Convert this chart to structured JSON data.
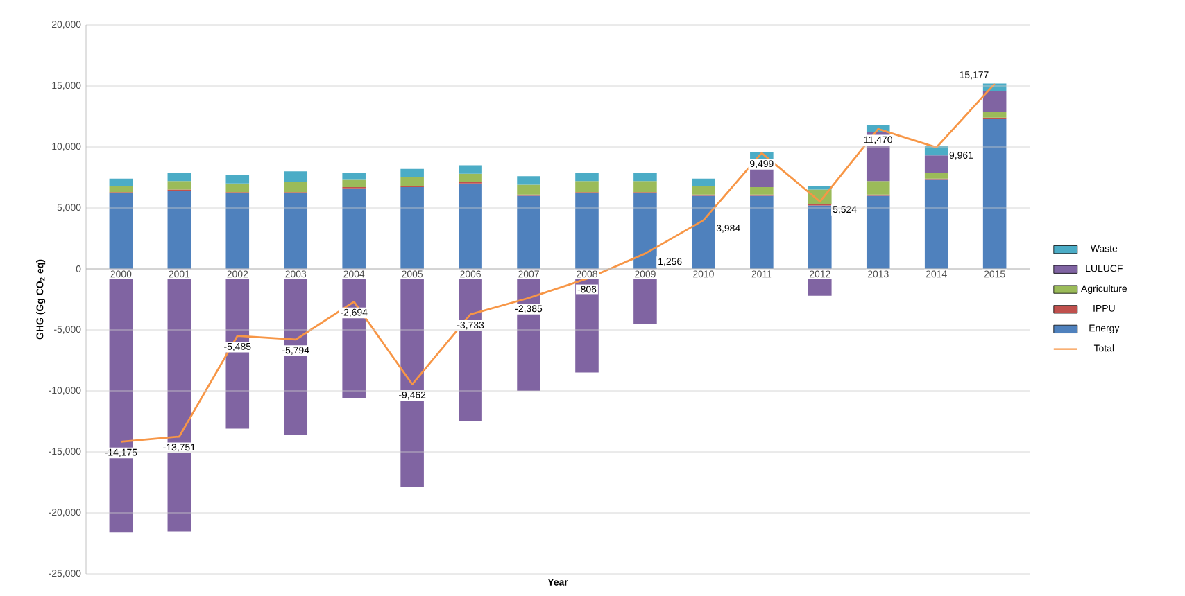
{
  "chart_data": {
    "type": "bar",
    "stacked": true,
    "xlabel": "Year",
    "ylabel": "GHG (Gg CO$_{2}$ eq)",
    "categories": [
      "2000",
      "2001",
      "2002",
      "2003",
      "2004",
      "2005",
      "2006",
      "2007",
      "2008",
      "2009",
      "2010",
      "2011",
      "2012",
      "2013",
      "2014",
      "2015"
    ],
    "series": [
      {
        "name": "Energy",
        "color": "#4f81bd",
        "values": [
          6200,
          6400,
          6200,
          6200,
          6600,
          6700,
          7000,
          6000,
          6200,
          6200,
          6000,
          6000,
          5200,
          6000,
          7300,
          12300
        ]
      },
      {
        "name": "IPPU",
        "color": "#c0504d",
        "values": [
          100,
          100,
          100,
          100,
          100,
          100,
          100,
          100,
          100,
          100,
          100,
          100,
          100,
          100,
          100,
          100
        ]
      },
      {
        "name": "Agriculture",
        "color": "#9bbb59",
        "values": [
          500,
          700,
          700,
          800,
          600,
          700,
          700,
          800,
          900,
          900,
          700,
          600,
          1200,
          1100,
          500,
          500
        ]
      },
      {
        "name": "LULUCF",
        "color": "#8064a2",
        "values": [
          -21600,
          -21500,
          -13100,
          -13600,
          -10600,
          -17900,
          -12500,
          -10000,
          -8500,
          -4500,
          0,
          2300,
          -2200,
          4000,
          1400,
          1700
        ]
      },
      {
        "name": "Waste",
        "color": "#4bacc6",
        "values": [
          600,
          700,
          700,
          900,
          600,
          700,
          700,
          700,
          700,
          700,
          600,
          600,
          300,
          600,
          800,
          600
        ]
      },
      {
        "name": "Total",
        "type": "line",
        "color": "#f79646",
        "values": [
          -14175,
          -13751,
          -5485,
          -5794,
          -2694,
          -9462,
          -3733,
          -2385,
          -806,
          1256,
          3984,
          9499,
          5524,
          11470,
          9961,
          15177
        ],
        "value_labels": [
          "-14,175",
          "-13,751",
          "-5,485",
          "-5,794",
          "-2,694",
          "-9,462",
          "-3,733",
          "-2,385",
          "-806",
          "1,256",
          "3,984",
          "9,499",
          "5,524",
          "11,470",
          "9,961",
          "15,177"
        ]
      }
    ],
    "ylim": [
      -25000,
      20000
    ],
    "yticks": [
      {
        "value": -25000,
        "label": "-25,000"
      },
      {
        "value": -20000,
        "label": "-20,000"
      },
      {
        "value": -15000,
        "label": "-15,000"
      },
      {
        "value": -10000,
        "label": "-10,000"
      },
      {
        "value": -5000,
        "label": "-5,000"
      },
      {
        "value": 0,
        "label": "0"
      },
      {
        "value": 5000,
        "label": "5,000"
      },
      {
        "value": 10000,
        "label": "10,000"
      },
      {
        "value": 15000,
        "label": "15,000"
      },
      {
        "value": 20000,
        "label": "20,000"
      }
    ],
    "grid": "y",
    "legend": "right"
  }
}
